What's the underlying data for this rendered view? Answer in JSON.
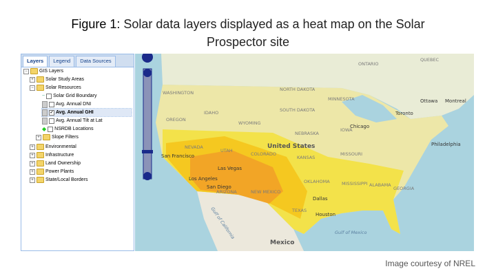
{
  "caption": {
    "label": "Figure 1:",
    "text": "Solar data layers displayed as a heat map on the Solar Prospector site"
  },
  "tabs": [
    "Layers",
    "Legend",
    "Data Sources"
  ],
  "tree": [
    "GIS Layers",
    "Solar Study Areas",
    "Solar Resources",
    "Solar Grid Boundary",
    "Avg. Annual DNI",
    "Avg. Annual GHI",
    "Avg. Annual Tilt at Lat",
    "NSRDB Locations",
    "Slope Filters",
    "Environmental",
    "Infrastructure",
    "Land Ownership",
    "Power Plants",
    "State/Local Borders"
  ],
  "map_labels": [
    "QUEBEC",
    "ONTARIO",
    "WASHINGTON",
    "NORTH DAKOTA",
    "MINNESOTA",
    "SOUTH DAKOTA",
    "OREGON",
    "IDAHO",
    "WYOMING",
    "NEBRASKA",
    "IOWA",
    "NEVADA",
    "UTAH",
    "COLORADO",
    "KANSAS",
    "MISSOURI",
    "United States",
    "San Francisco",
    "Las Vegas",
    "ARIZONA",
    "NEW MEXICO",
    "OKLAHOMA",
    "Los Angeles",
    "San Diego",
    "Dallas",
    "TEXAS",
    "Houston",
    "MISSISSIPPI",
    "ALABAMA",
    "GEORGIA",
    "Chicago",
    "Toronto",
    "Ottawa",
    "Montreal",
    "Philadelphia",
    "Mexico",
    "Gulf of Mexico",
    "Gulf of California"
  ],
  "credit": "Image courtesy of NREL"
}
